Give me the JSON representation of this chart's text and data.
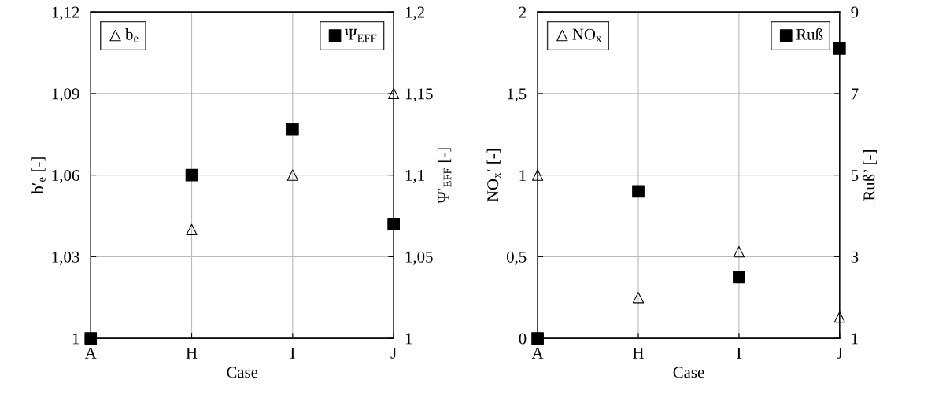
{
  "chart_data": [
    {
      "type": "scatter",
      "categories": [
        "A",
        "H",
        "I",
        "J"
      ],
      "xlabel": "Case",
      "ylabel": "b′$_{e}$ [-]",
      "y2label": "Ψ′$_{EFF}$ [-]",
      "ylim": [
        1,
        1.12
      ],
      "yticks": [
        1,
        {
          "value": 1.03,
          "label": "1,03"
        },
        {
          "value": 1.06,
          "label": "1,06"
        },
        {
          "value": 1.09,
          "label": "1,09"
        },
        {
          "value": 1.12,
          "label": "1,12"
        }
      ],
      "y2lim": [
        1,
        1.2
      ],
      "y2ticks": [
        1,
        {
          "value": 1.05,
          "label": "1,05"
        },
        {
          "value": 1.1,
          "label": "1,1"
        },
        {
          "value": 1.15,
          "label": "1,15"
        },
        {
          "value": 1.2,
          "label": "1,2"
        }
      ],
      "grid": true,
      "legend": "top left",
      "series": [
        {
          "name": "b$_{e}$",
          "color": "#000000",
          "marker": "triangle",
          "values": [
            null,
            1.04,
            1.06,
            1.09
          ]
        },
        {
          "name": "Ψ$_{EFF}$",
          "color": "#000000",
          "marker": "square",
          "axis": "y2",
          "values": [
            1.0,
            1.1,
            1.128,
            1.07
          ]
        }
      ]
    },
    {
      "type": "scatter",
      "categories": [
        "A",
        "H",
        "I",
        "J"
      ],
      "xlabel": "Case",
      "ylabel": "NO$_{x}$′ [-]",
      "y2label": "Ruß’ [-]",
      "ylim": [
        0,
        2
      ],
      "yticks": [
        0,
        {
          "value": 0.5,
          "label": "0,5"
        },
        1,
        {
          "value": 1.5,
          "label": "1,5"
        },
        2
      ],
      "y2lim": [
        1,
        9
      ],
      "y2ticks": [
        1,
        3,
        5,
        7,
        9
      ],
      "grid": true,
      "legend": "top left",
      "series": [
        {
          "name": "NO$_{x}$",
          "color": "#000000",
          "marker": "triangle",
          "values": [
            1.0,
            0.25,
            0.53,
            0.13
          ]
        },
        {
          "name": "Ruß",
          "color": "#000000",
          "marker": "square",
          "axis": "y2",
          "values": [
            1.0,
            4.6,
            2.5,
            8.1
          ]
        }
      ]
    }
  ]
}
